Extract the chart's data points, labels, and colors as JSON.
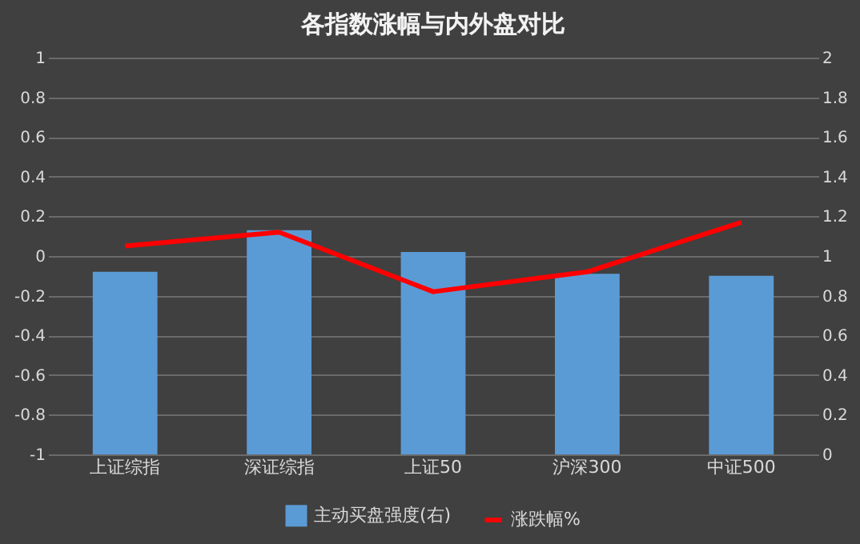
{
  "chart_data": {
    "type": "bar",
    "title": "各指数涨幅与内外盘对比",
    "categories": [
      "上证综指",
      "深证综指",
      "上证50",
      "沪深300",
      "中证500"
    ],
    "series": [
      {
        "name": "主动买盘强度(右)",
        "axis": "y2",
        "color": "#5b9bd5",
        "values": [
          0.92,
          1.13,
          1.02,
          0.91,
          0.9
        ]
      },
      {
        "name": "涨跌幅%",
        "type": "line",
        "axis": "y",
        "color": "#ff0000",
        "values": [
          0.05,
          0.12,
          -0.18,
          -0.08,
          0.17
        ]
      }
    ],
    "ylim": [
      -1,
      1
    ],
    "yticks": [
      -1,
      -0.8,
      -0.6,
      -0.4,
      -0.2,
      0,
      0.2,
      0.4,
      0.6,
      0.8,
      1
    ],
    "y2lim": [
      0,
      2
    ],
    "y2ticks": [
      0,
      0.2,
      0.4,
      0.6,
      0.8,
      1,
      1.2,
      1.4,
      1.6,
      1.8,
      2
    ],
    "grid": "y",
    "legend": "bottom",
    "marker": "none",
    "line_style": "solid"
  }
}
